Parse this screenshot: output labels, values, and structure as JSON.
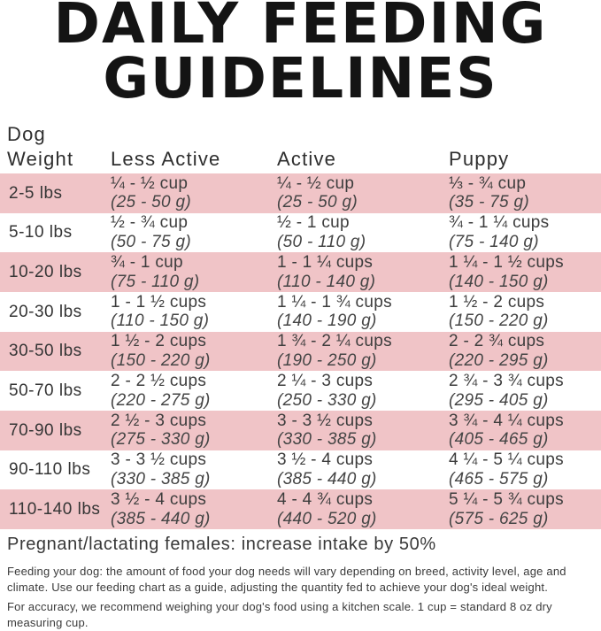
{
  "title": {
    "line1": "DAILY FEEDING",
    "line2": "GUIDELINES"
  },
  "colors": {
    "row_pink": "#f0c4c7",
    "title_black": "#141414",
    "body_text": "#3d3d3d"
  },
  "table": {
    "header": {
      "weight_line1": "Dog",
      "weight_line2": "Weight",
      "less_active": "Less Active",
      "active": "Active",
      "puppy": "Puppy"
    },
    "rows": [
      {
        "weight": "2-5 lbs",
        "less_active": {
          "cups": "¼ - ½ cup",
          "grams": "(25 - 50 g)"
        },
        "active": {
          "cups": "¼ - ½ cup",
          "grams": "(25 - 50 g)"
        },
        "puppy": {
          "cups": "⅓ - ¾ cup",
          "grams": "(35 - 75 g)"
        }
      },
      {
        "weight": "5-10 lbs",
        "less_active": {
          "cups": "½ - ¾ cup",
          "grams": "(50 - 75 g)"
        },
        "active": {
          "cups": "½ - 1 cup",
          "grams": "(50 - 110 g)"
        },
        "puppy": {
          "cups": "¾ - 1 ¼ cups",
          "grams": "(75 - 140 g)"
        }
      },
      {
        "weight": "10-20 lbs",
        "less_active": {
          "cups": "¾ - 1 cup",
          "grams": "(75 - 110 g)"
        },
        "active": {
          "cups": "1 - 1 ¼ cups",
          "grams": "(110 - 140 g)"
        },
        "puppy": {
          "cups": "1 ¼ - 1 ½ cups",
          "grams": "(140 - 150 g)"
        }
      },
      {
        "weight": "20-30 lbs",
        "less_active": {
          "cups": "1 - 1 ½ cups",
          "grams": "(110 - 150 g)"
        },
        "active": {
          "cups": "1 ¼ - 1 ¾ cups",
          "grams": "(140 - 190 g)"
        },
        "puppy": {
          "cups": "1 ½ - 2 cups",
          "grams": "(150 - 220 g)"
        }
      },
      {
        "weight": "30-50 lbs",
        "less_active": {
          "cups": "1 ½ - 2 cups",
          "grams": "(150 - 220 g)"
        },
        "active": {
          "cups": "1 ¾ - 2 ¼ cups",
          "grams": "(190 - 250 g)"
        },
        "puppy": {
          "cups": "2 - 2 ¾ cups",
          "grams": "(220 - 295 g)"
        }
      },
      {
        "weight": "50-70 lbs",
        "less_active": {
          "cups": "2 - 2 ½ cups",
          "grams": "(220 - 275 g)"
        },
        "active": {
          "cups": "2 ¼ - 3 cups",
          "grams": "(250 - 330 g)"
        },
        "puppy": {
          "cups": "2 ¾ - 3 ¾ cups",
          "grams": "(295 - 405 g)"
        }
      },
      {
        "weight": "70-90 lbs",
        "less_active": {
          "cups": "2 ½ - 3 cups",
          "grams": "(275 - 330 g)"
        },
        "active": {
          "cups": "3 - 3 ½ cups",
          "grams": "(330 - 385 g)"
        },
        "puppy": {
          "cups": "3 ¾ - 4 ¼ cups",
          "grams": "(405 - 465 g)"
        }
      },
      {
        "weight": "90-110 lbs",
        "less_active": {
          "cups": "3 - 3 ½ cups",
          "grams": "(330 - 385 g)"
        },
        "active": {
          "cups": "3 ½ - 4 cups",
          "grams": "(385 - 440 g)"
        },
        "puppy": {
          "cups": "4 ¼ - 5 ¼ cups",
          "grams": "(465 - 575 g)"
        }
      },
      {
        "weight": "110-140 lbs",
        "less_active": {
          "cups": "3 ½ - 4 cups",
          "grams": "(385 - 440 g)"
        },
        "active": {
          "cups": "4 - 4 ¾ cups",
          "grams": "(440 - 520 g)"
        },
        "puppy": {
          "cups": "5 ¼ - 5 ¾ cups",
          "grams": "(575 - 625 g)"
        }
      }
    ]
  },
  "notes": {
    "pregnant": "Pregnant/lactating females: increase intake by 50%",
    "feeding": "Feeding your dog: the amount of food your dog needs will vary depending on breed, activity level, age and\nclimate. Use our feeding chart as a guide, adjusting the quantity fed to achieve your dog's ideal weight.",
    "accuracy": "For accuracy, we recommend weighing your dog's food using a kitchen scale. 1 cup = standard 8 oz dry\nmeasuring cup."
  }
}
